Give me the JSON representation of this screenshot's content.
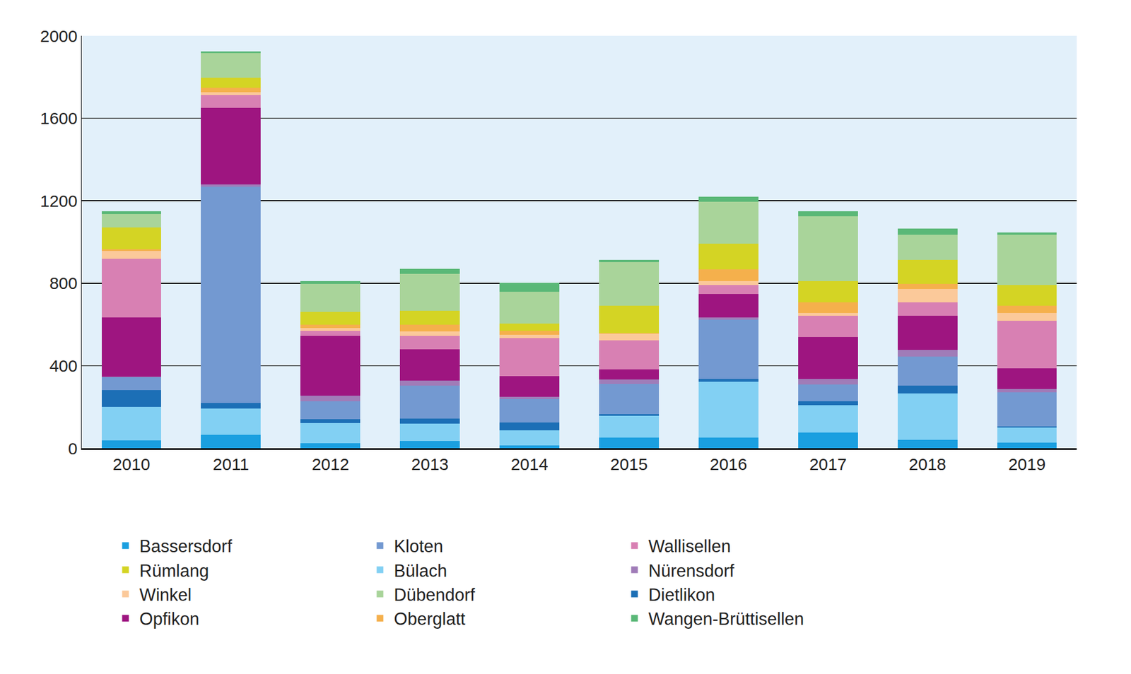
{
  "chart_data": {
    "type": "bar",
    "stacked": true,
    "grid": true,
    "legend": "bottom",
    "categories": [
      "2010",
      "2011",
      "2012",
      "2013",
      "2014",
      "2015",
      "2016",
      "2017",
      "2018",
      "2019"
    ],
    "ylim": [
      0,
      2000
    ],
    "yticks": [
      0,
      400,
      800,
      1200,
      1600,
      2000
    ],
    "series": [
      {
        "name": "Bassersdorf",
        "color": "#1a9fe0",
        "values": [
          38,
          66,
          24,
          35,
          14,
          52,
          52,
          77,
          42,
          28
        ]
      },
      {
        "name": "Bülach",
        "color": "#82d0f3",
        "values": [
          162,
          126,
          98,
          84,
          73,
          105,
          270,
          133,
          224,
          73
        ]
      },
      {
        "name": "Dietlikon",
        "color": "#1c6fb6",
        "values": [
          83,
          28,
          18,
          24,
          39,
          7,
          14,
          17,
          38,
          4
        ]
      },
      {
        "name": "Kloten",
        "color": "#7399d1",
        "values": [
          60,
          1049,
          87,
          161,
          112,
          147,
          286,
          81,
          140,
          165
        ]
      },
      {
        "name": "Nürensdorf",
        "color": "#a07cb8",
        "values": [
          3,
          11,
          28,
          25,
          10,
          21,
          11,
          28,
          32,
          18
        ]
      },
      {
        "name": "Opfikon",
        "color": "#9e1580",
        "values": [
          287,
          370,
          290,
          150,
          102,
          49,
          115,
          202,
          167,
          100
        ]
      },
      {
        "name": "Wallisellen",
        "color": "#d880b3",
        "values": [
          287,
          63,
          25,
          66,
          185,
          143,
          42,
          105,
          63,
          231
        ]
      },
      {
        "name": "Winkel",
        "color": "#fbc99a",
        "values": [
          38,
          14,
          14,
          21,
          14,
          32,
          21,
          14,
          67,
          38
        ]
      },
      {
        "name": "Oberglatt",
        "color": "#f5b04c",
        "values": [
          7,
          21,
          14,
          32,
          21,
          3,
          56,
          49,
          24,
          35
        ]
      },
      {
        "name": "Rümlang",
        "color": "#d4d424",
        "values": [
          105,
          49,
          63,
          70,
          35,
          133,
          126,
          105,
          116,
          98
        ]
      },
      {
        "name": "Dübendorf",
        "color": "#a9d49a",
        "values": [
          66,
          119,
          136,
          178,
          154,
          210,
          203,
          315,
          122,
          245
        ]
      },
      {
        "name": "Wangen-Brüttisellen",
        "color": "#5ab877",
        "values": [
          14,
          7,
          14,
          25,
          42,
          11,
          24,
          24,
          31,
          10
        ]
      }
    ]
  }
}
